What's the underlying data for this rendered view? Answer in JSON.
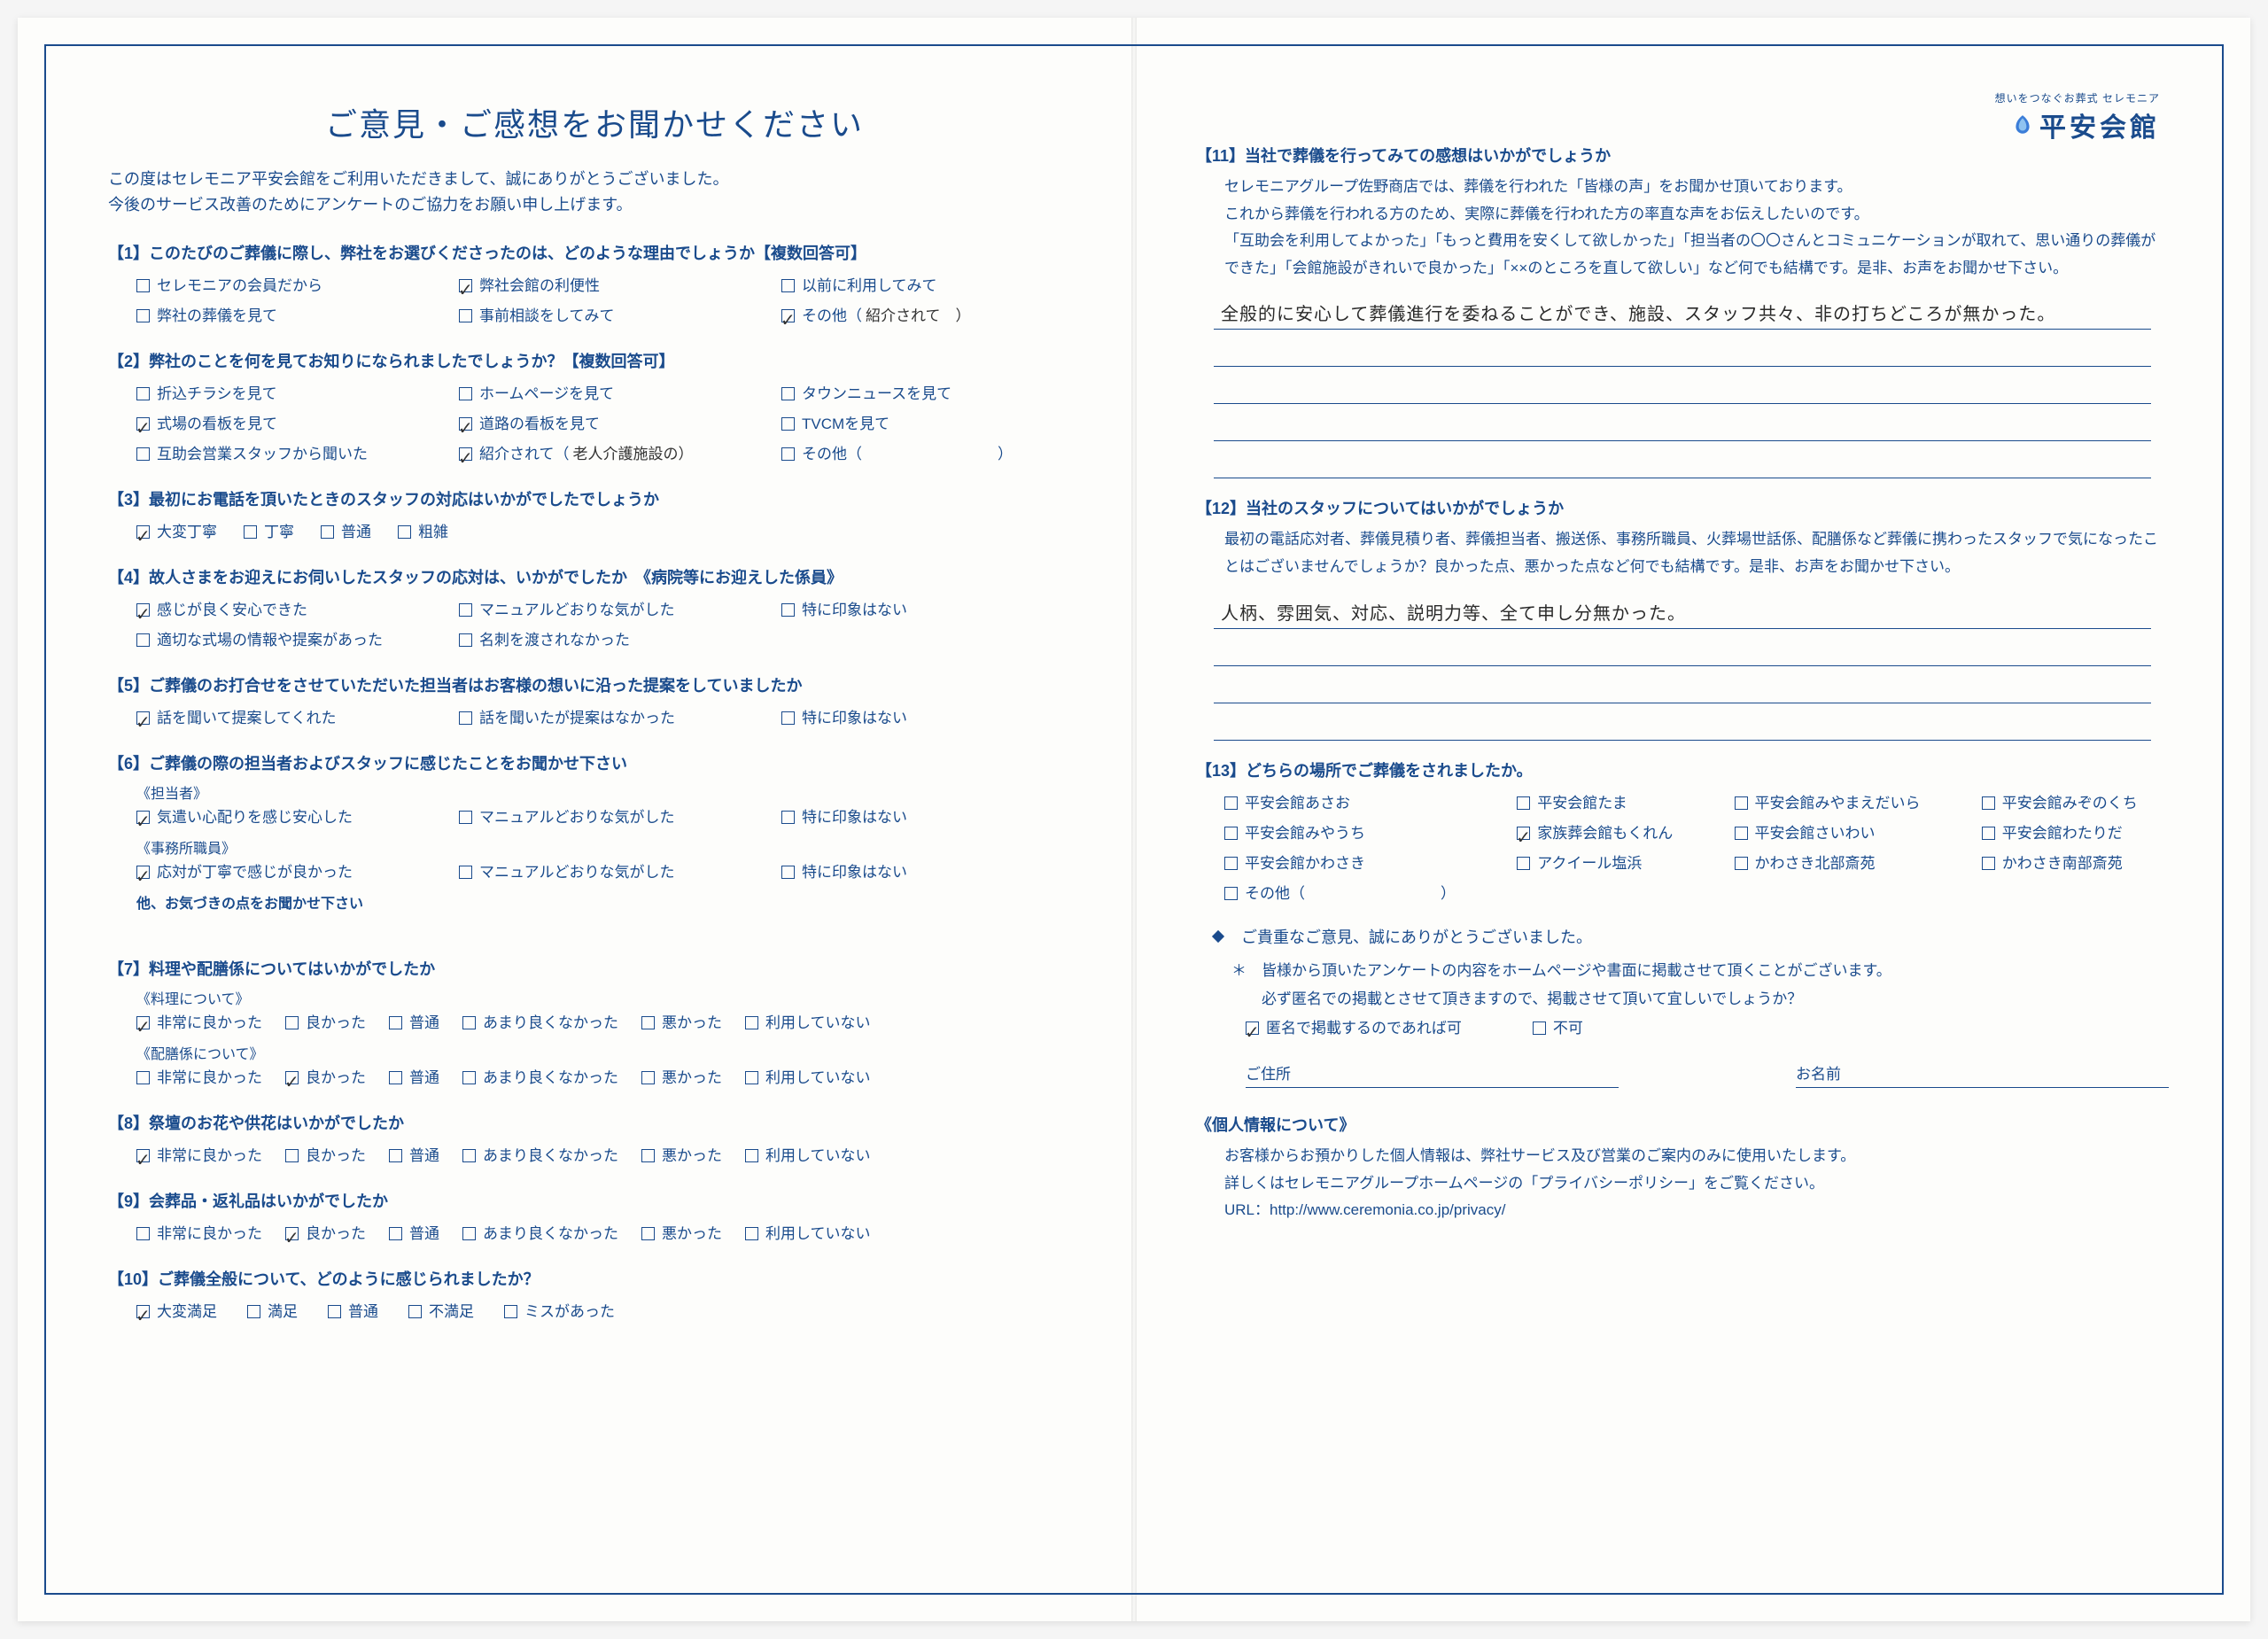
{
  "colors": {
    "primary": "#1a4b8c",
    "paper": "#fdfdfb",
    "ink": "#333333"
  },
  "title": "ご意見・ご感想をお聞かせください",
  "intro1": "この度はセレモニア平安会館をご利用いただきまして、誠にありがとうございました。",
  "intro2": "今後のサービス改善のためにアンケートのご協力をお願い申し上げます。",
  "logo": {
    "tagline": "想いをつなぐお葬式 セレモニア",
    "name": "平安会館"
  },
  "q1": {
    "title": "【1】このたびのご葬儀に際し、弊社をお選びくださったのは、どのような理由でしょうか【複数回答可】",
    "opts": [
      {
        "label": "セレモニアの会員だから",
        "checked": false
      },
      {
        "label": "弊社会館の利便性",
        "checked": true
      },
      {
        "label": "以前に利用してみて",
        "checked": false
      },
      {
        "label": "弊社の葬儀を見て",
        "checked": false
      },
      {
        "label": "事前相談をしてみて",
        "checked": false
      },
      {
        "label": "その他（",
        "checked": true,
        "fill": "紹介されて　）"
      }
    ]
  },
  "q2": {
    "title": "【2】弊社のことを何を見てお知りになられましたでしょうか？【複数回答可】",
    "opts": [
      {
        "label": "折込チラシを見て",
        "checked": false
      },
      {
        "label": "ホームページを見て",
        "checked": false
      },
      {
        "label": "タウンニュースを見て",
        "checked": false
      },
      {
        "label": "式場の看板を見て",
        "checked": true
      },
      {
        "label": "道路の看板を見て",
        "checked": true
      },
      {
        "label": "TVCMを見て",
        "checked": false
      },
      {
        "label": "互助会営業スタッフから聞いた",
        "checked": false
      },
      {
        "label": "紹介されて（",
        "checked": true,
        "fill": "老人介護施設の）"
      },
      {
        "label": "その他（　　　　　　　　　）",
        "checked": false
      }
    ]
  },
  "q3": {
    "title": "【3】最初にお電話を頂いたときのスタッフの対応はいかがでしたでしょうか",
    "opts": [
      {
        "label": "大変丁寧",
        "checked": true
      },
      {
        "label": "丁寧",
        "checked": false
      },
      {
        "label": "普通",
        "checked": false
      },
      {
        "label": "粗雑",
        "checked": false
      }
    ]
  },
  "q4": {
    "title": "【4】故人さまをお迎えにお伺いしたスタッフの応対は、いかがでしたか　《病院等にお迎えした係員》",
    "opts": [
      {
        "label": "感じが良く安心できた",
        "checked": true
      },
      {
        "label": "マニュアルどおりな気がした",
        "checked": false
      },
      {
        "label": "特に印象はない",
        "checked": false
      },
      {
        "label": "適切な式場の情報や提案があった",
        "checked": false
      },
      {
        "label": "名刺を渡されなかった",
        "checked": false
      }
    ]
  },
  "q5": {
    "title": "【5】ご葬儀のお打合せをさせていただいた担当者はお客様の想いに沿った提案をしていましたか",
    "opts": [
      {
        "label": "話を聞いて提案してくれた",
        "checked": true
      },
      {
        "label": "話を聞いたが提案はなかった",
        "checked": false
      },
      {
        "label": "特に印象はない",
        "checked": false
      }
    ]
  },
  "q6": {
    "title": "【6】ご葬儀の際の担当者およびスタッフに感じたことをお聞かせ下さい",
    "sub1": "《担当者》",
    "opts1": [
      {
        "label": "気遣い心配りを感じ安心した",
        "checked": true
      },
      {
        "label": "マニュアルどおりな気がした",
        "checked": false
      },
      {
        "label": "特に印象はない",
        "checked": false
      }
    ],
    "sub2": "《事務所職員》",
    "opts2": [
      {
        "label": "応対が丁寧で感じが良かった",
        "checked": true
      },
      {
        "label": "マニュアルどおりな気がした",
        "checked": false
      },
      {
        "label": "特に印象はない",
        "checked": false
      }
    ],
    "note": "他、お気づきの点をお聞かせ下さい"
  },
  "q7": {
    "title": "【7】料理や配膳係についてはいかがでしたか",
    "sub1": "《料理について》",
    "sub2": "《配膳係について》",
    "scale": [
      "非常に良かった",
      "良かった",
      "普通",
      "あまり良くなかった",
      "悪かった",
      "利用していない"
    ],
    "row1_checked": 0,
    "row2_checked": 1
  },
  "q8": {
    "title": "【8】祭壇のお花や供花はいかがでしたか",
    "scale": [
      "非常に良かった",
      "良かった",
      "普通",
      "あまり良くなかった",
      "悪かった",
      "利用していない"
    ],
    "checked": 0
  },
  "q9": {
    "title": "【9】会葬品・返礼品はいかがでしたか",
    "scale": [
      "非常に良かった",
      "良かった",
      "普通",
      "あまり良くなかった",
      "悪かった",
      "利用していない"
    ],
    "checked": 1
  },
  "q10": {
    "title": "【10】ご葬儀全般について、どのように感じられましたか？",
    "scale": [
      "大変満足",
      "満足",
      "普通",
      "不満足",
      "ミスがあった"
    ],
    "checked": 0
  },
  "q11": {
    "title": "【11】当社で葬儀を行ってみての感想はいかがでしょうか",
    "desc": [
      "セレモニアグループ佐野商店では、葬儀を行われた「皆様の声」をお聞かせ頂いております。",
      "これから葬儀を行われる方のため、実際に葬儀を行われた方の率直な声をお伝えしたいのです。",
      "「互助会を利用してよかった」「もっと費用を安くして欲しかった」「担当者の〇〇さんとコミュニケーションが取れて、思い通りの葬儀ができた」「会館施設がきれいで良かった」「××のところを直して欲しい」など何でも結構です。是非、お声をお聞かせ下さい。"
    ],
    "hand": "全般的に安心して葬儀進行を委ねることができ、施設、スタッフ共々、非の打ちどころが無かった。"
  },
  "q12": {
    "title": "【12】当社のスタッフについてはいかがでしょうか",
    "desc": [
      "最初の電話応対者、葬儀見積り者、葬儀担当者、搬送係、事務所職員、火葬場世話係、配膳係など葬儀に携わったスタッフで気になったことはございませんでしょうか？良かった点、悪かった点など何でも結構です。是非、お声をお聞かせ下さい。"
    ],
    "hand": "人柄、雰囲気、対応、説明力等、全て申し分無かった。"
  },
  "q13": {
    "title": "【13】どちらの場所でご葬儀をされましたか。",
    "opts": [
      {
        "label": "平安会館あさお",
        "checked": false
      },
      {
        "label": "平安会館たま",
        "checked": false
      },
      {
        "label": "平安会館みやまえだいら",
        "checked": false
      },
      {
        "label": "平安会館みぞのくち",
        "checked": false
      },
      {
        "label": "平安会館みやうち",
        "checked": false
      },
      {
        "label": "家族葬会館もくれん",
        "checked": true
      },
      {
        "label": "平安会館さいわい",
        "checked": false
      },
      {
        "label": "平安会館わたりだ",
        "checked": false
      },
      {
        "label": "平安会館かわさき",
        "checked": false
      },
      {
        "label": "アクイール塩浜",
        "checked": false
      },
      {
        "label": "かわさき北部斎苑",
        "checked": false
      },
      {
        "label": "かわさき南部斎苑",
        "checked": false
      },
      {
        "label": "その他（　　　　　　　　　）",
        "checked": false
      }
    ]
  },
  "thanks": "ご貴重なご意見、誠にありがとうございました。",
  "publish_note1": "皆様から頂いたアンケートの内容をホームページや書面に掲載させて頂くことがございます。",
  "publish_note2": "必ず匿名での掲載とさせて頂きますので、掲載させて頂いて宜しいでしょうか？",
  "publish_opts": [
    {
      "label": "匿名で掲載するのであれば可",
      "checked": true
    },
    {
      "label": "不可",
      "checked": false
    }
  ],
  "addr_label": "ご住所",
  "name_label": "お名前",
  "privacy": {
    "title": "《個人情報について》",
    "l1": "お客様からお預かりした個人情報は、弊社サービス及び営業のご案内のみに使用いたします。",
    "l2": "詳しくはセレモニアグループホームページの「プライバシーポリシー」をご覧ください。",
    "l3": "URL：http://www.ceremonia.co.jp/privacy/"
  }
}
